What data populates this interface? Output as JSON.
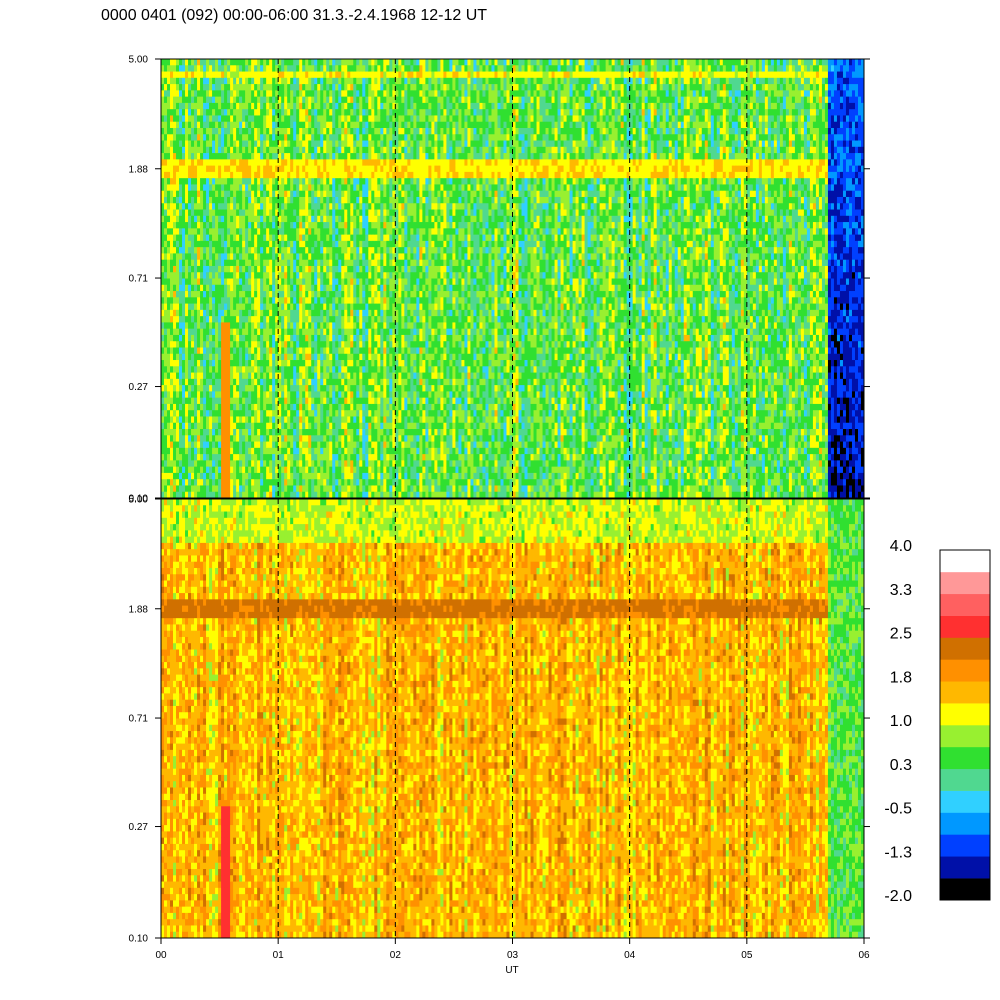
{
  "title": "0000 0401 (092) 00:00-06:00 31.3.-2.4.1968  12-12 UT",
  "chart_data": [
    {
      "type": "heatmap",
      "panel": "upper",
      "x_range": [
        0,
        6
      ],
      "x_unit_label": "",
      "y_scale": "log",
      "y_range": [
        0.1,
        5.0
      ],
      "y_ticks": [
        "5.00",
        "1.88",
        "0.71",
        "0.27",
        "0.10"
      ],
      "vertical_dashed_lines_at_hours": [
        1,
        2,
        3,
        4,
        5
      ],
      "features": {
        "background_level": 0.5,
        "bright_band_y": 1.88,
        "bright_band_level": 1.2,
        "top_band_y": 4.5,
        "top_band_level": 1.1,
        "low_values_after_hour": 5.7,
        "low_values_level": -0.9,
        "burst_hour": 0.55,
        "burst_level": 2.0
      }
    },
    {
      "type": "heatmap",
      "panel": "lower",
      "x_range": [
        0,
        6
      ],
      "y_scale": "log",
      "y_range": [
        0.1,
        5.0
      ],
      "y_ticks": [
        "5.00",
        "1.88",
        "0.71",
        "0.27",
        "0.10"
      ],
      "vertical_dashed_lines_at_hours": [
        1,
        2,
        3,
        4,
        5
      ],
      "features": {
        "background_level": 1.6,
        "band_y": 1.88,
        "band_level": 2.2,
        "top_level": 1.0,
        "low_values_after_hour": 5.7,
        "low_values_level": 0.5,
        "burst_hour": 0.55,
        "burst_level": 2.6
      }
    }
  ],
  "x_axis": {
    "label": "UT",
    "ticks": [
      "00",
      "01",
      "02",
      "03",
      "04",
      "05",
      "06"
    ]
  },
  "colorbar": {
    "labels": [
      "4.0",
      "3.3",
      "2.5",
      "1.8",
      "1.0",
      "0.3",
      "-0.5",
      "-1.3",
      "-2.0"
    ],
    "colors": [
      "#000000",
      "#0010a8",
      "#0040ff",
      "#0098ff",
      "#30d0ff",
      "#50d890",
      "#30e030",
      "#98f030",
      "#ffff00",
      "#ffb800",
      "#ff9000",
      "#d07000",
      "#ff3030",
      "#ff6060",
      "#ff9898",
      "#ffffff"
    ]
  }
}
